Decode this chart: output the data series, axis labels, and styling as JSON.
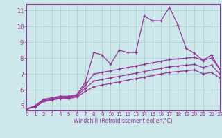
{
  "title": "",
  "xlabel": "Windchill (Refroidissement éolien,°C)",
  "bg_color": "#cce8ea",
  "line_color": "#993399",
  "grid_color": "#aacccc",
  "xlim": [
    0,
    23
  ],
  "ylim": [
    4.7,
    11.4
  ],
  "xticks": [
    0,
    1,
    2,
    3,
    4,
    5,
    6,
    7,
    8,
    9,
    10,
    11,
    12,
    13,
    14,
    15,
    16,
    17,
    18,
    19,
    20,
    21,
    22,
    23
  ],
  "yticks": [
    5,
    6,
    7,
    8,
    9,
    10,
    11
  ],
  "series": [
    [
      4.8,
      5.0,
      5.4,
      5.5,
      5.6,
      5.6,
      5.7,
      6.5,
      8.35,
      8.2,
      7.6,
      8.5,
      8.35,
      8.35,
      10.65,
      10.35,
      10.35,
      11.2,
      10.1,
      8.6,
      8.3,
      7.85,
      8.2,
      7.3
    ],
    [
      4.8,
      4.95,
      5.35,
      5.45,
      5.55,
      5.55,
      5.65,
      6.3,
      7.0,
      7.1,
      7.2,
      7.3,
      7.4,
      7.5,
      7.6,
      7.7,
      7.8,
      7.9,
      7.95,
      8.0,
      8.05,
      7.85,
      8.0,
      7.3
    ],
    [
      4.8,
      4.95,
      5.3,
      5.4,
      5.5,
      5.5,
      5.6,
      6.1,
      6.55,
      6.65,
      6.75,
      6.85,
      6.95,
      7.05,
      7.15,
      7.25,
      7.35,
      7.45,
      7.5,
      7.55,
      7.6,
      7.4,
      7.55,
      7.0
    ],
    [
      4.8,
      4.9,
      5.25,
      5.35,
      5.45,
      5.45,
      5.55,
      5.9,
      6.2,
      6.3,
      6.4,
      6.5,
      6.6,
      6.7,
      6.8,
      6.9,
      7.0,
      7.1,
      7.15,
      7.2,
      7.25,
      7.0,
      7.1,
      6.75
    ]
  ],
  "marker": "+",
  "markersize": 3.5,
  "linewidth": 0.9,
  "tick_fontsize_x": 5.2,
  "tick_fontsize_y": 6.0,
  "xlabel_fontsize": 5.5
}
